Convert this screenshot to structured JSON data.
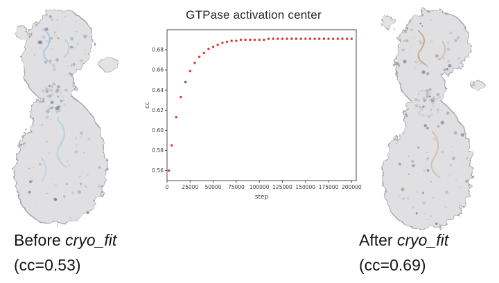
{
  "captions": {
    "before": {
      "prefix": "Before ",
      "program": "cryo_fit",
      "cc": "(cc=0.53)"
    },
    "after": {
      "prefix": "After ",
      "program": "cryo_fit",
      "cc": "(cc=0.69)"
    }
  },
  "chart_data": {
    "type": "scatter",
    "title": "GTPase activation center",
    "xlabel": "step",
    "ylabel": "cc",
    "xlim": [
      0,
      205000
    ],
    "ylim": [
      0.55,
      0.7
    ],
    "x_ticks": [
      0,
      25000,
      50000,
      75000,
      100000,
      125000,
      150000,
      175000,
      200000
    ],
    "y_ticks": [
      0.56,
      0.58,
      0.6,
      0.62,
      0.64,
      0.66,
      0.68
    ],
    "marker_color": "#d93a2b",
    "grid": false,
    "legend": "none",
    "x": [
      2000,
      5000,
      10000,
      15000,
      20000,
      25000,
      30000,
      35000,
      40000,
      45000,
      50000,
      55000,
      60000,
      65000,
      70000,
      75000,
      80000,
      85000,
      90000,
      95000,
      100000,
      105000,
      110000,
      115000,
      120000,
      125000,
      130000,
      135000,
      140000,
      145000,
      150000,
      155000,
      160000,
      165000,
      170000,
      175000,
      180000,
      185000,
      190000,
      195000,
      200000
    ],
    "y": [
      0.56,
      0.585,
      0.613,
      0.633,
      0.648,
      0.659,
      0.667,
      0.673,
      0.677,
      0.681,
      0.683,
      0.685,
      0.687,
      0.688,
      0.689,
      0.689,
      0.69,
      0.69,
      0.69,
      0.69,
      0.69,
      0.69,
      0.691,
      0.691,
      0.691,
      0.691,
      0.691,
      0.691,
      0.691,
      0.691,
      0.691,
      0.691,
      0.691,
      0.691,
      0.691,
      0.691,
      0.691,
      0.691,
      0.691,
      0.691,
      0.691
    ]
  }
}
